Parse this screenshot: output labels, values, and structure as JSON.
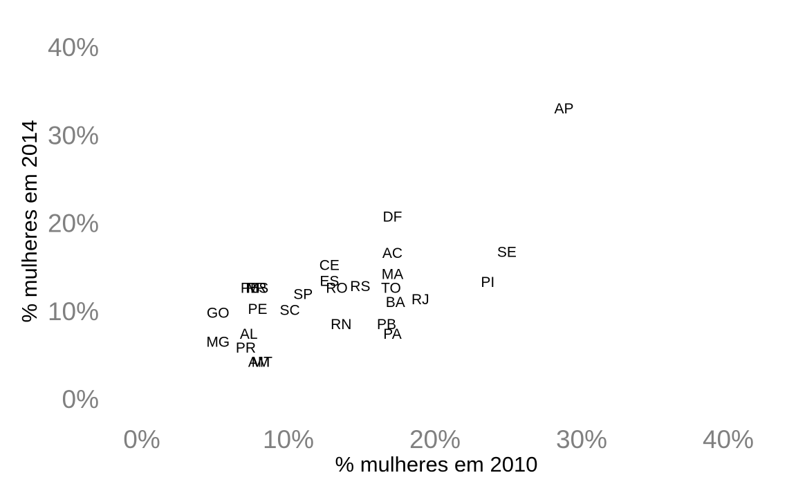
{
  "chart_data": {
    "type": "scatter",
    "xlabel": "% mulheres em 2010",
    "ylabel": "% mulheres em 2014",
    "xlim": [
      0,
      40
    ],
    "ylim": [
      0,
      40
    ],
    "x_ticks": [
      "0%",
      "10%",
      "20%",
      "30%",
      "40%"
    ],
    "y_ticks": [
      "0%",
      "10%",
      "20%",
      "30%",
      "40%"
    ],
    "grid": false,
    "points": [
      {
        "label": "AP",
        "x": 28.8,
        "y": 33.0
      },
      {
        "label": "DF",
        "x": 17.1,
        "y": 20.7
      },
      {
        "label": "AC",
        "x": 17.1,
        "y": 16.6
      },
      {
        "label": "SE",
        "x": 24.9,
        "y": 16.7
      },
      {
        "label": "CE",
        "x": 12.8,
        "y": 15.2
      },
      {
        "label": "MA",
        "x": 17.1,
        "y": 14.2
      },
      {
        "label": "ES",
        "x": 12.8,
        "y": 13.4
      },
      {
        "label": "PI",
        "x": 23.6,
        "y": 13.3
      },
      {
        "label": "RO",
        "x": 13.3,
        "y": 12.6
      },
      {
        "label": "RS",
        "x": 14.9,
        "y": 12.8
      },
      {
        "label": "TO",
        "x": 17.0,
        "y": 12.6
      },
      {
        "label": "PB",
        "x": 7.4,
        "y": 12.6
      },
      {
        "label": "RR",
        "x": 7.8,
        "y": 12.6
      },
      {
        "label": "MS",
        "x": 7.9,
        "y": 12.6
      },
      {
        "label": "SP",
        "x": 11.0,
        "y": 11.9
      },
      {
        "label": "RJ",
        "x": 19.0,
        "y": 11.3
      },
      {
        "label": "BA",
        "x": 17.3,
        "y": 11.0
      },
      {
        "label": "PE",
        "x": 7.9,
        "y": 10.2
      },
      {
        "label": "SC",
        "x": 10.1,
        "y": 10.1
      },
      {
        "label": "GO",
        "x": 5.2,
        "y": 9.8
      },
      {
        "label": "RN",
        "x": 13.6,
        "y": 8.5
      },
      {
        "label": "PB",
        "x": 16.7,
        "y": 8.5
      },
      {
        "label": "PA",
        "x": 17.1,
        "y": 7.4
      },
      {
        "label": "AL",
        "x": 7.3,
        "y": 7.4
      },
      {
        "label": "MG",
        "x": 5.2,
        "y": 6.5
      },
      {
        "label": "PR",
        "x": 7.1,
        "y": 5.8
      },
      {
        "label": "AM",
        "x": 8.0,
        "y": 4.2
      },
      {
        "label": "MT",
        "x": 8.2,
        "y": 4.2
      }
    ]
  }
}
